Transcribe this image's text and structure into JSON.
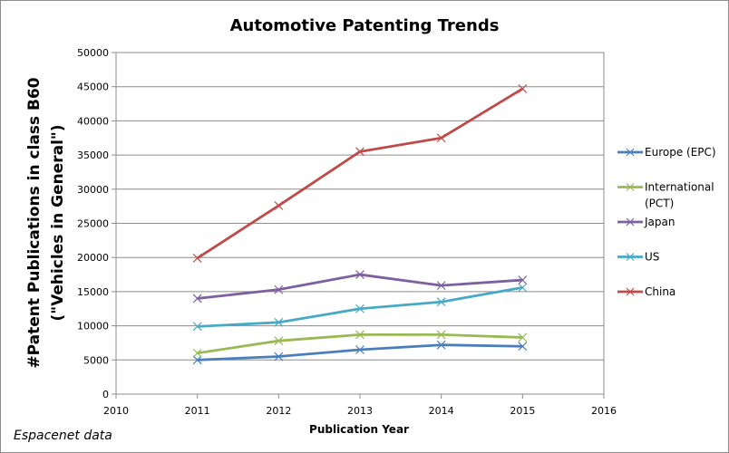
{
  "chart_data": {
    "type": "line",
    "title": "Automotive Patenting Trends",
    "xlabel": "Publication Year",
    "ylabel_lines": [
      "#Patent Publications in class B60",
      "(\"Vehicles in General\")"
    ],
    "source_note": "Espacenet data",
    "xlim": [
      2010,
      2016
    ],
    "ylim": [
      0,
      50000
    ],
    "x_ticks": [
      2010,
      2011,
      2012,
      2013,
      2014,
      2015,
      2016
    ],
    "y_ticks": [
      0,
      5000,
      10000,
      15000,
      20000,
      25000,
      30000,
      35000,
      40000,
      45000,
      50000
    ],
    "grid": "horizontal",
    "legend_position": "right",
    "x": [
      2011,
      2012,
      2013,
      2014,
      2015
    ],
    "series": [
      {
        "name": "Europe (EPC)",
        "legend_lines": [
          "Europe (EPC)"
        ],
        "color": "#4a7ebb",
        "values": [
          5000,
          5500,
          6500,
          7200,
          7000
        ]
      },
      {
        "name": "International (PCT)",
        "legend_lines": [
          "International",
          "(PCT)"
        ],
        "color": "#98b954",
        "values": [
          6000,
          7800,
          8700,
          8700,
          8300
        ]
      },
      {
        "name": "Japan",
        "legend_lines": [
          "Japan"
        ],
        "color": "#7d60a0",
        "values": [
          14000,
          15300,
          17500,
          15900,
          16700
        ]
      },
      {
        "name": "US",
        "legend_lines": [
          "US"
        ],
        "color": "#46aac5",
        "values": [
          9900,
          10500,
          12500,
          13500,
          15600
        ]
      },
      {
        "name": "China",
        "legend_lines": [
          "China"
        ],
        "color": "#be4b48",
        "values": [
          19900,
          27600,
          35500,
          37500,
          44700
        ]
      }
    ]
  }
}
